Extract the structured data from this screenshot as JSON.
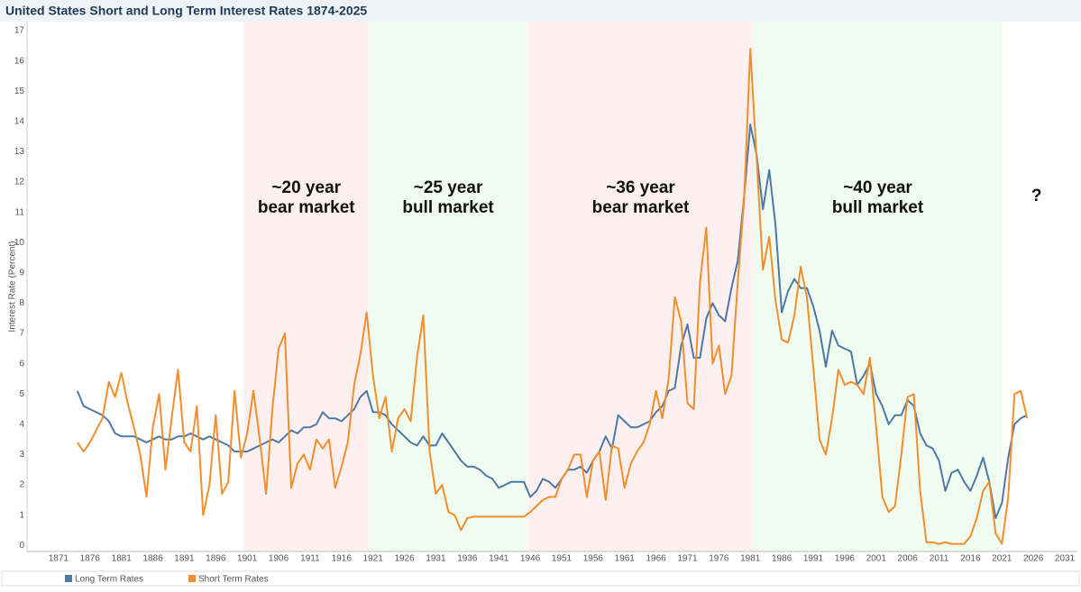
{
  "chart_data": {
    "type": "line",
    "title": "United States Short and Long Term Interest Rates 1874-2025",
    "y_label": "Interest Rate (Percent)",
    "x": [
      1874,
      1875,
      1876,
      1877,
      1878,
      1879,
      1880,
      1881,
      1882,
      1883,
      1884,
      1885,
      1886,
      1887,
      1888,
      1889,
      1890,
      1891,
      1892,
      1893,
      1894,
      1895,
      1896,
      1897,
      1898,
      1899,
      1900,
      1901,
      1902,
      1903,
      1904,
      1905,
      1906,
      1907,
      1908,
      1909,
      1910,
      1911,
      1912,
      1913,
      1914,
      1915,
      1916,
      1917,
      1918,
      1919,
      1920,
      1921,
      1922,
      1923,
      1924,
      1925,
      1926,
      1927,
      1928,
      1929,
      1930,
      1931,
      1932,
      1933,
      1934,
      1935,
      1936,
      1937,
      1938,
      1939,
      1940,
      1941,
      1942,
      1943,
      1944,
      1945,
      1946,
      1947,
      1948,
      1949,
      1950,
      1951,
      1952,
      1953,
      1954,
      1955,
      1956,
      1957,
      1958,
      1959,
      1960,
      1961,
      1962,
      1963,
      1964,
      1965,
      1966,
      1967,
      1968,
      1969,
      1970,
      1971,
      1972,
      1973,
      1974,
      1975,
      1976,
      1977,
      1978,
      1979,
      1980,
      1981,
      1982,
      1983,
      1984,
      1985,
      1986,
      1987,
      1988,
      1989,
      1990,
      1991,
      1992,
      1993,
      1994,
      1995,
      1996,
      1997,
      1998,
      1999,
      2000,
      2001,
      2002,
      2003,
      2004,
      2005,
      2006,
      2007,
      2008,
      2009,
      2010,
      2011,
      2012,
      2013,
      2014,
      2015,
      2016,
      2017,
      2018,
      2019,
      2020,
      2021,
      2022,
      2023,
      2024,
      2025
    ],
    "series": [
      {
        "name": "Long Term Rates",
        "color": "#4e79a7",
        "values": [
          5.1,
          4.6,
          4.5,
          4.4,
          4.3,
          4.1,
          3.7,
          3.6,
          3.6,
          3.6,
          3.5,
          3.4,
          3.5,
          3.6,
          3.5,
          3.5,
          3.6,
          3.6,
          3.7,
          3.6,
          3.5,
          3.6,
          3.5,
          3.4,
          3.3,
          3.1,
          3.1,
          3.1,
          3.2,
          3.3,
          3.4,
          3.5,
          3.4,
          3.6,
          3.8,
          3.7,
          3.9,
          3.9,
          4.0,
          4.4,
          4.2,
          4.2,
          4.1,
          4.3,
          4.5,
          4.9,
          5.1,
          4.4,
          4.4,
          4.3,
          4.0,
          3.8,
          3.6,
          3.4,
          3.3,
          3.6,
          3.3,
          3.3,
          3.7,
          3.4,
          3.1,
          2.8,
          2.6,
          2.6,
          2.5,
          2.3,
          2.2,
          1.9,
          2.0,
          2.1,
          2.1,
          2.1,
          1.6,
          1.8,
          2.2,
          2.1,
          1.9,
          2.2,
          2.5,
          2.5,
          2.6,
          2.4,
          2.8,
          3.1,
          3.6,
          3.2,
          4.3,
          4.1,
          3.9,
          3.9,
          4.0,
          4.1,
          4.4,
          4.6,
          5.1,
          5.2,
          6.6,
          7.3,
          6.2,
          6.2,
          7.5,
          8.0,
          7.6,
          7.4,
          8.5,
          9.4,
          11.5,
          13.9,
          12.9,
          11.1,
          12.4,
          10.6,
          7.7,
          8.4,
          8.8,
          8.5,
          8.5,
          7.9,
          7.1,
          5.9,
          7.1,
          6.6,
          6.5,
          6.4,
          5.3,
          5.6,
          6.0,
          5.0,
          4.6,
          4.0,
          4.3,
          4.3,
          4.8,
          4.6,
          3.7,
          3.3,
          3.2,
          2.8,
          1.8,
          2.4,
          2.5,
          2.1,
          1.8,
          2.3,
          2.9,
          2.1,
          0.9,
          1.4,
          2.9,
          4.0,
          4.2,
          4.3
        ]
      },
      {
        "name": "Short Term Rates",
        "color": "#f28e2b",
        "values": [
          3.4,
          3.1,
          3.4,
          3.8,
          4.2,
          5.4,
          4.9,
          5.7,
          4.7,
          3.9,
          3.0,
          1.6,
          3.9,
          5.0,
          2.5,
          4.2,
          5.8,
          3.4,
          3.1,
          4.6,
          1.0,
          2.0,
          4.3,
          1.7,
          2.1,
          5.1,
          2.9,
          3.7,
          5.1,
          3.5,
          1.7,
          4.5,
          6.5,
          7.0,
          1.9,
          2.7,
          3.0,
          2.5,
          3.5,
          3.2,
          3.5,
          1.9,
          2.6,
          3.4,
          5.3,
          6.3,
          7.7,
          5.6,
          4.2,
          4.9,
          3.1,
          4.2,
          4.5,
          4.1,
          6.2,
          7.6,
          3.1,
          1.7,
          2.0,
          1.1,
          1.0,
          0.5,
          0.9,
          0.95,
          0.95,
          0.95,
          0.95,
          0.95,
          0.95,
          0.95,
          0.95,
          0.95,
          1.1,
          1.3,
          1.5,
          1.6,
          1.6,
          2.2,
          2.5,
          3.0,
          3.0,
          1.6,
          2.8,
          3.1,
          1.5,
          3.3,
          3.2,
          1.9,
          2.7,
          3.1,
          3.4,
          4.0,
          5.1,
          4.2,
          5.5,
          8.2,
          7.4,
          4.7,
          4.5,
          8.7,
          10.5,
          6.0,
          6.6,
          5.0,
          5.6,
          8.7,
          11.4,
          16.4,
          12.8,
          9.1,
          10.2,
          8.1,
          6.8,
          6.7,
          7.6,
          9.2,
          8.2,
          5.9,
          3.5,
          3.0,
          4.2,
          5.8,
          5.3,
          5.4,
          5.3,
          5.0,
          6.2,
          3.9,
          1.6,
          1.1,
          1.3,
          3.0,
          4.9,
          5.0,
          1.8,
          0.1,
          0.1,
          0.05,
          0.1,
          0.05,
          0.05,
          0.05,
          0.3,
          0.9,
          1.8,
          2.1,
          0.4,
          0.05,
          1.6,
          5.0,
          5.1,
          4.2
        ]
      }
    ],
    "regions": [
      {
        "start": 1900.5,
        "end": 1920.3,
        "color": "#fdf0f0",
        "label": [
          "~20 year",
          "bear market"
        ]
      },
      {
        "start": 1920.3,
        "end": 1945.6,
        "color": "#f0fcef",
        "label": [
          "~25 year",
          "bull market"
        ]
      },
      {
        "start": 1945.6,
        "end": 1981.5,
        "color": "#fdf0f0",
        "label": [
          "~36 year",
          "bear market"
        ]
      },
      {
        "start": 1981.5,
        "end": 2021.0,
        "color": "#f0fcef",
        "label": [
          "~40 year",
          "bull market"
        ]
      }
    ],
    "annotations": [
      {
        "text": "?",
        "x": 2026.5
      }
    ],
    "xlim": [
      1866,
      2033
    ],
    "ylim": [
      -0.2,
      17.3
    ],
    "xticks": [
      1871,
      1876,
      1881,
      1886,
      1891,
      1896,
      1901,
      1906,
      1911,
      1916,
      1921,
      1926,
      1931,
      1936,
      1941,
      1946,
      1951,
      1956,
      1961,
      1966,
      1971,
      1976,
      1981,
      1986,
      1991,
      1996,
      2001,
      2006,
      2011,
      2016,
      2021,
      2026,
      2031
    ],
    "yticks": [
      0,
      1,
      2,
      3,
      4,
      5,
      6,
      7,
      8,
      9,
      10,
      11,
      12,
      13,
      14,
      15,
      16,
      17
    ],
    "grid": false
  }
}
